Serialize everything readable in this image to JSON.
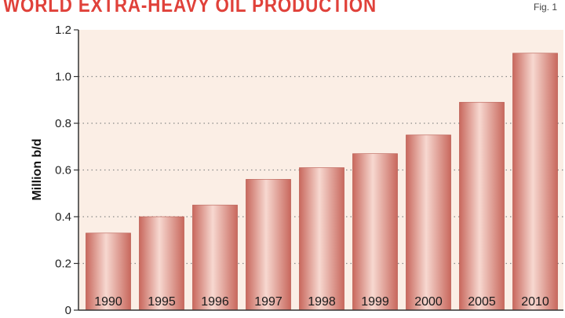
{
  "header": {
    "title": "WORLD EXTRA-HEAVY OIL PRODUCTION",
    "fig_label": "Fig. 1"
  },
  "colors": {
    "title": "#e0413a",
    "panel_bg": "#fbeee5",
    "bar_dark": "#c8685d",
    "bar_light": "#f7d8d0",
    "grid": "#8a8a8a"
  },
  "chart_data": {
    "type": "bar",
    "categories": [
      "1990",
      "1995",
      "1996",
      "1997",
      "1998",
      "1999",
      "2000",
      "2005",
      "2010"
    ],
    "values": [
      0.33,
      0.4,
      0.45,
      0.56,
      0.61,
      0.67,
      0.75,
      0.89,
      1.1
    ],
    "ylabel": "Million b/d",
    "ylim": [
      0,
      1.2
    ],
    "yticks": [
      "0",
      "0.2",
      "0.4",
      "0.6",
      "0.8",
      "1.0",
      "1.2"
    ],
    "grid": true,
    "grid_style": "dotted"
  }
}
